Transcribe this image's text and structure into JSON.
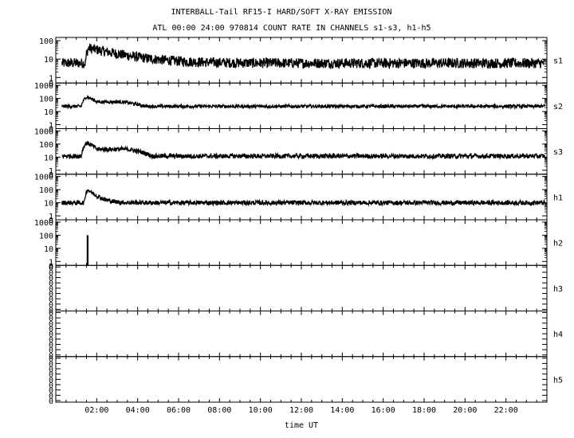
{
  "chart_data": {
    "type": "line",
    "title": "INTERBALL-Tail RF15-I HARD/SOFT X-RAY EMISSION",
    "subtitle": "ATL 00:00 24:00 970814  COUNT RATE IN CHANNELS s1-s3, h1-h5",
    "xlabel": "time UT",
    "x_ticks": [
      "02:00",
      "04:00",
      "06:00",
      "08:00",
      "10:00",
      "12:00",
      "14:00",
      "16:00",
      "18:00",
      "20:00",
      "22:00"
    ],
    "xlim_hours": [
      0,
      24
    ],
    "y_scale": "log",
    "grid": false,
    "panels": [
      {
        "name": "s1",
        "y_ticks": [
          "100",
          "10",
          "1",
          "0"
        ],
        "ylim": [
          0.5,
          150
        ],
        "baseline": 6,
        "peak_time_hours": 1.6,
        "peak_value": 40,
        "decay_hours": 1.5,
        "noise": 0.55
      },
      {
        "name": "s2",
        "y_ticks": [
          "1000",
          "100",
          "10",
          "1",
          "0"
        ],
        "ylim": [
          0.5,
          1500
        ],
        "baseline": 25,
        "peak_time_hours": 1.5,
        "peak_value": 130,
        "shoulder_value": 55,
        "shoulder_until_hours": 3.2,
        "noise": 0.25
      },
      {
        "name": "s3",
        "y_ticks": [
          "1000",
          "100",
          "10",
          "1",
          "0"
        ],
        "ylim": [
          0.5,
          1500
        ],
        "baseline": 12,
        "peak_time_hours": 1.5,
        "peak_value": 120,
        "shoulder_value": 40,
        "shoulder_until_hours": 3.5,
        "noise": 0.35
      },
      {
        "name": "h1",
        "y_ticks": [
          "1000",
          "100",
          "10",
          "1",
          "0"
        ],
        "ylim": [
          0.5,
          1500
        ],
        "baseline": 10,
        "peak_time_hours": 1.55,
        "peak_value": 100,
        "decay_hours": 0.35,
        "noise": 0.35
      },
      {
        "name": "h2",
        "y_ticks": [
          "1000",
          "100",
          "10",
          "1",
          "0"
        ],
        "ylim": [
          0.5,
          1500
        ],
        "spike_time_hours": 1.55,
        "spike_value": 100
      },
      {
        "name": "h3",
        "y_ticks": [
          "0",
          "0",
          "0",
          "0",
          "0",
          "0",
          "0",
          "0",
          "0"
        ]
      },
      {
        "name": "h4",
        "y_ticks": [
          "0",
          "0",
          "0",
          "0",
          "0",
          "0",
          "0",
          "0",
          "0"
        ]
      },
      {
        "name": "h5",
        "y_ticks": [
          "0",
          "0",
          "0",
          "0",
          "0",
          "0",
          "0",
          "0",
          "0"
        ]
      }
    ]
  }
}
